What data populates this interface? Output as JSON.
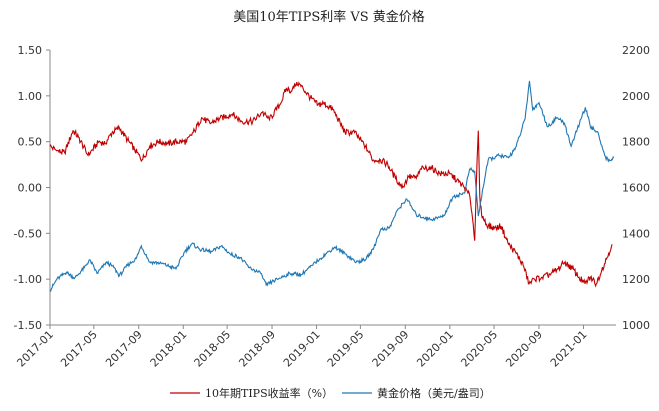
{
  "chart_data": {
    "type": "line",
    "title": "美国10年TIPS利率 VS 黄金价格",
    "x_tick_labels": [
      "2017-01",
      "2017-05",
      "2017-09",
      "2018-01",
      "2018-05",
      "2018-09",
      "2019-01",
      "2019-05",
      "2019-09",
      "2020-01",
      "2020-05",
      "2020-09",
      "2021-01"
    ],
    "x_range": [
      "2017-01-01",
      "2021-03-31"
    ],
    "y_left": {
      "ylim": [
        -1.5,
        1.5
      ],
      "ticks": [
        "1.50",
        "1.00",
        "0.50",
        "0.00",
        "-0.50",
        "-1.00",
        "-1.50"
      ]
    },
    "y_right": {
      "ylim": [
        1000,
        2200
      ],
      "ticks": [
        "2200",
        "2000",
        "1800",
        "1600",
        "1400",
        "1200",
        "1000"
      ]
    },
    "grid": false,
    "legend_position": "bottom",
    "series": [
      {
        "name": "10年期TIPS收益率（%）",
        "axis": "left",
        "color": "#c00000",
        "points": [
          [
            "2017-01-01",
            0.45
          ],
          [
            "2017-01-20",
            0.4
          ],
          [
            "2017-02-10",
            0.38
          ],
          [
            "2017-03-05",
            0.62
          ],
          [
            "2017-03-20",
            0.55
          ],
          [
            "2017-04-15",
            0.35
          ],
          [
            "2017-05-15",
            0.5
          ],
          [
            "2017-06-01",
            0.48
          ],
          [
            "2017-06-20",
            0.6
          ],
          [
            "2017-07-10",
            0.65
          ],
          [
            "2017-08-01",
            0.52
          ],
          [
            "2017-08-20",
            0.42
          ],
          [
            "2017-09-10",
            0.3
          ],
          [
            "2017-10-01",
            0.45
          ],
          [
            "2017-10-25",
            0.5
          ],
          [
            "2017-11-20",
            0.48
          ],
          [
            "2017-12-15",
            0.5
          ],
          [
            "2018-01-10",
            0.5
          ],
          [
            "2018-02-01",
            0.62
          ],
          [
            "2018-02-20",
            0.76
          ],
          [
            "2018-03-15",
            0.7
          ],
          [
            "2018-04-10",
            0.75
          ],
          [
            "2018-05-15",
            0.8
          ],
          [
            "2018-06-10",
            0.72
          ],
          [
            "2018-07-10",
            0.72
          ],
          [
            "2018-08-05",
            0.82
          ],
          [
            "2018-08-25",
            0.74
          ],
          [
            "2018-09-25",
            0.92
          ],
          [
            "2018-10-10",
            1.08
          ],
          [
            "2018-10-25",
            1.05
          ],
          [
            "2018-11-08",
            1.15
          ],
          [
            "2018-11-25",
            1.08
          ],
          [
            "2018-12-15",
            0.98
          ],
          [
            "2019-01-05",
            0.9
          ],
          [
            "2019-01-20",
            0.92
          ],
          [
            "2019-02-15",
            0.85
          ],
          [
            "2019-03-20",
            0.6
          ],
          [
            "2019-04-15",
            0.6
          ],
          [
            "2019-05-15",
            0.45
          ],
          [
            "2019-06-05",
            0.3
          ],
          [
            "2019-06-25",
            0.3
          ],
          [
            "2019-07-15",
            0.25
          ],
          [
            "2019-08-05",
            0.1
          ],
          [
            "2019-08-25",
            0.0
          ],
          [
            "2019-09-10",
            0.12
          ],
          [
            "2019-10-01",
            0.1
          ],
          [
            "2019-10-15",
            0.2
          ],
          [
            "2019-11-10",
            0.22
          ],
          [
            "2019-12-05",
            0.15
          ],
          [
            "2020-01-01",
            0.15
          ],
          [
            "2020-01-20",
            0.08
          ],
          [
            "2020-02-10",
            0.0
          ],
          [
            "2020-02-25",
            -0.1
          ],
          [
            "2020-03-05",
            -0.4
          ],
          [
            "2020-03-09",
            -0.58
          ],
          [
            "2020-03-14",
            0.1
          ],
          [
            "2020-03-19",
            0.62
          ],
          [
            "2020-03-23",
            -0.1
          ],
          [
            "2020-03-28",
            -0.3
          ],
          [
            "2020-04-10",
            -0.4
          ],
          [
            "2020-05-01",
            -0.45
          ],
          [
            "2020-05-20",
            -0.42
          ],
          [
            "2020-06-10",
            -0.62
          ],
          [
            "2020-07-01",
            -0.72
          ],
          [
            "2020-07-20",
            -0.85
          ],
          [
            "2020-08-05",
            -1.05
          ],
          [
            "2020-08-20",
            -1.0
          ],
          [
            "2020-09-10",
            -0.98
          ],
          [
            "2020-10-01",
            -0.95
          ],
          [
            "2020-10-20",
            -0.9
          ],
          [
            "2020-11-10",
            -0.82
          ],
          [
            "2020-12-01",
            -0.88
          ],
          [
            "2020-12-20",
            -0.98
          ],
          [
            "2021-01-05",
            -1.05
          ],
          [
            "2021-01-20",
            -0.98
          ],
          [
            "2021-02-05",
            -1.05
          ],
          [
            "2021-02-20",
            -0.9
          ],
          [
            "2021-03-05",
            -0.78
          ],
          [
            "2021-03-20",
            -0.62
          ]
        ]
      },
      {
        "name": "黄金价格（美元/盎司）",
        "axis": "right",
        "color": "#1f77b4",
        "points": [
          [
            "2017-01-01",
            1150
          ],
          [
            "2017-01-20",
            1200
          ],
          [
            "2017-02-15",
            1230
          ],
          [
            "2017-03-10",
            1205
          ],
          [
            "2017-04-05",
            1250
          ],
          [
            "2017-04-20",
            1285
          ],
          [
            "2017-05-10",
            1225
          ],
          [
            "2017-06-05",
            1275
          ],
          [
            "2017-06-25",
            1250
          ],
          [
            "2017-07-10",
            1215
          ],
          [
            "2017-08-01",
            1260
          ],
          [
            "2017-08-25",
            1290
          ],
          [
            "2017-09-08",
            1345
          ],
          [
            "2017-10-01",
            1275
          ],
          [
            "2017-11-01",
            1270
          ],
          [
            "2017-12-12",
            1245
          ],
          [
            "2018-01-05",
            1320
          ],
          [
            "2018-01-25",
            1355
          ],
          [
            "2018-02-15",
            1330
          ],
          [
            "2018-03-20",
            1320
          ],
          [
            "2018-04-15",
            1345
          ],
          [
            "2018-05-10",
            1310
          ],
          [
            "2018-06-05",
            1295
          ],
          [
            "2018-07-01",
            1250
          ],
          [
            "2018-08-01",
            1225
          ],
          [
            "2018-08-16",
            1175
          ],
          [
            "2018-09-15",
            1200
          ],
          [
            "2018-10-20",
            1225
          ],
          [
            "2018-11-20",
            1220
          ],
          [
            "2018-12-20",
            1260
          ],
          [
            "2019-01-10",
            1290
          ],
          [
            "2019-02-20",
            1340
          ],
          [
            "2019-03-20",
            1310
          ],
          [
            "2019-04-20",
            1275
          ],
          [
            "2019-05-15",
            1285
          ],
          [
            "2019-06-05",
            1330
          ],
          [
            "2019-06-25",
            1415
          ],
          [
            "2019-07-20",
            1425
          ],
          [
            "2019-08-10",
            1500
          ],
          [
            "2019-09-05",
            1550
          ],
          [
            "2019-10-01",
            1480
          ],
          [
            "2019-11-10",
            1460
          ],
          [
            "2019-12-15",
            1475
          ],
          [
            "2020-01-10",
            1560
          ],
          [
            "2020-02-10",
            1575
          ],
          [
            "2020-02-24",
            1680
          ],
          [
            "2020-03-09",
            1670
          ],
          [
            "2020-03-19",
            1475
          ],
          [
            "2020-04-01",
            1600
          ],
          [
            "2020-04-15",
            1720
          ],
          [
            "2020-05-15",
            1740
          ],
          [
            "2020-06-10",
            1730
          ],
          [
            "2020-07-01",
            1780
          ],
          [
            "2020-07-25",
            1900
          ],
          [
            "2020-08-06",
            2065
          ],
          [
            "2020-08-15",
            1940
          ],
          [
            "2020-09-01",
            1970
          ],
          [
            "2020-09-25",
            1865
          ],
          [
            "2020-10-20",
            1905
          ],
          [
            "2020-11-10",
            1880
          ],
          [
            "2020-11-28",
            1780
          ],
          [
            "2020-12-15",
            1855
          ],
          [
            "2021-01-06",
            1950
          ],
          [
            "2021-01-20",
            1865
          ],
          [
            "2021-02-10",
            1840
          ],
          [
            "2021-02-28",
            1740
          ],
          [
            "2021-03-10",
            1715
          ],
          [
            "2021-03-25",
            1730
          ]
        ]
      }
    ]
  }
}
